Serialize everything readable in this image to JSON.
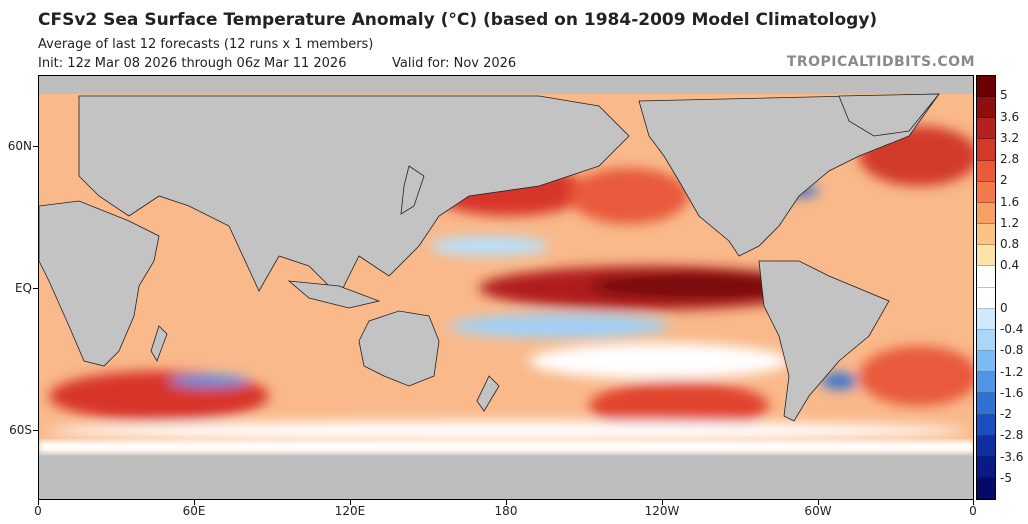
{
  "header": {
    "title": "CFSv2 Sea Surface Temperature Anomaly (°C) (based on 1984-2009 Model Climatology)",
    "subtitle": "Average of last 12 forecasts (12 runs x 1 members)",
    "init": "Init: 12z Mar 08 2026 through 06z Mar 11 2026",
    "valid": "Valid for: Nov 2026",
    "brand": "TROPICALTIDBITS.COM"
  },
  "map": {
    "lat_labels": [
      "60N",
      "EQ",
      "60S"
    ],
    "lon_labels": [
      "0",
      "60E",
      "120E",
      "180",
      "120W",
      "60W",
      "0"
    ]
  },
  "colorbar": {
    "labels": [
      "5",
      "3.6",
      "3.2",
      "2.8",
      "2",
      "1.6",
      "1.2",
      "0.8",
      "0.4",
      "0",
      "-0.4",
      "-0.8",
      "-1.2",
      "-1.6",
      "-2",
      "-2.8",
      "-3.6",
      "-5"
    ],
    "colors": [
      "#6b0000",
      "#8f0f0f",
      "#b52020",
      "#d23a2a",
      "#e85a3a",
      "#f27a4a",
      "#f7a064",
      "#fbc486",
      "#fde3a8",
      "#ffffff",
      "#ffffff",
      "#cfeaff",
      "#a9d6fb",
      "#7bbaf3",
      "#4f96e6",
      "#2f72d4",
      "#1b4fbd",
      "#0f2f9f",
      "#0a1a85",
      "#050a66"
    ]
  }
}
